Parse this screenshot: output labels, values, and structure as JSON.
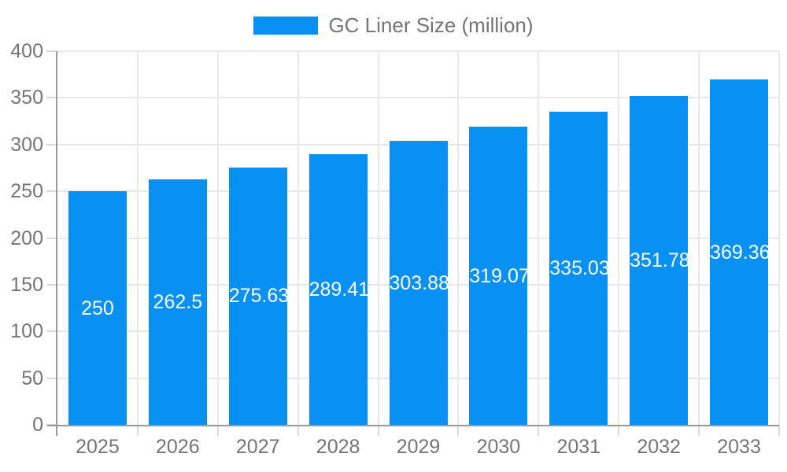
{
  "chart_data": {
    "type": "bar",
    "title": "GC Liner Size (million)",
    "categories": [
      "2025",
      "2026",
      "2027",
      "2028",
      "2029",
      "2030",
      "2031",
      "2032",
      "2033"
    ],
    "values": [
      250,
      262.5,
      275.63,
      289.41,
      303.88,
      319.07,
      335.03,
      351.78,
      369.36
    ],
    "value_labels": [
      "250",
      "262.5",
      "275.63",
      "289.41",
      "303.88",
      "319.07",
      "335.03",
      "351.78",
      "369.36"
    ],
    "xlabel": "",
    "ylabel": "",
    "ylim": [
      0,
      400
    ],
    "ytick_step": 50,
    "ytick_labels": [
      "0",
      "50",
      "100",
      "150",
      "200",
      "250",
      "300",
      "350",
      "400"
    ],
    "grid": true,
    "legend_position": "top",
    "colors": {
      "bar": "#0890f2",
      "grid": "#e8e8e8",
      "axis": "#999999",
      "tick_label": "#757575",
      "legend_text": "#757575",
      "bar_label": "#ffffff",
      "background": "#ffffff"
    }
  }
}
